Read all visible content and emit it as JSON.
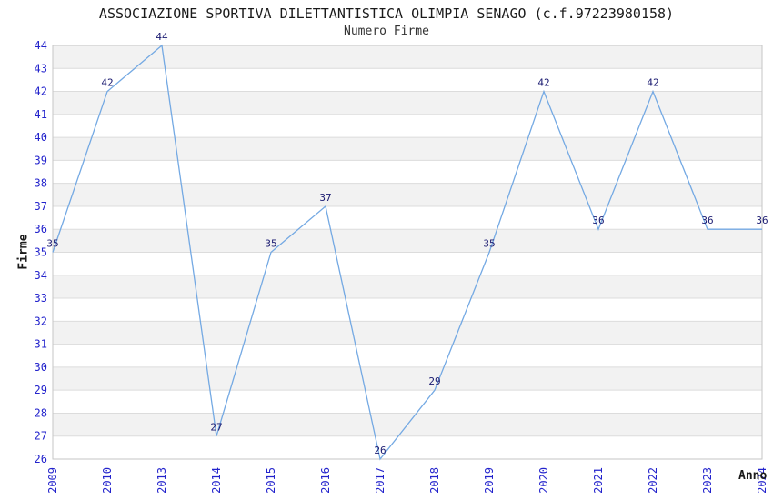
{
  "header": {
    "title": "ASSOCIAZIONE SPORTIVA DILETTANTISTICA OLIMPIA SENAGO (c.f.97223980158)",
    "subtitle": "Numero Firme"
  },
  "chart_data": {
    "type": "line",
    "title": "ASSOCIAZIONE SPORTIVA DILETTANTISTICA OLIMPIA SENAGO (c.f.97223980158)",
    "subtitle": "Numero Firme",
    "xlabel": "Anno",
    "ylabel": "Firme",
    "x": [
      "2009",
      "2010",
      "2013",
      "2014",
      "2015",
      "2016",
      "2017",
      "2018",
      "2019",
      "2020",
      "2021",
      "2022",
      "2023",
      "2024"
    ],
    "values": [
      35,
      42,
      44,
      27,
      35,
      37,
      26,
      29,
      35,
      42,
      36,
      42,
      36,
      36
    ],
    "ylim": [
      26,
      44
    ],
    "ytick_step": 1,
    "grid": true,
    "banded_rows": true,
    "legend": "none",
    "colors": {
      "line": "#74a9e3",
      "tick_labels": "#2323cc",
      "data_labels": "#191970",
      "band": "#f2f2f2",
      "gridline": "#dcdcdc",
      "border": "#c6c6c6",
      "title": "#1a1a1a"
    }
  }
}
